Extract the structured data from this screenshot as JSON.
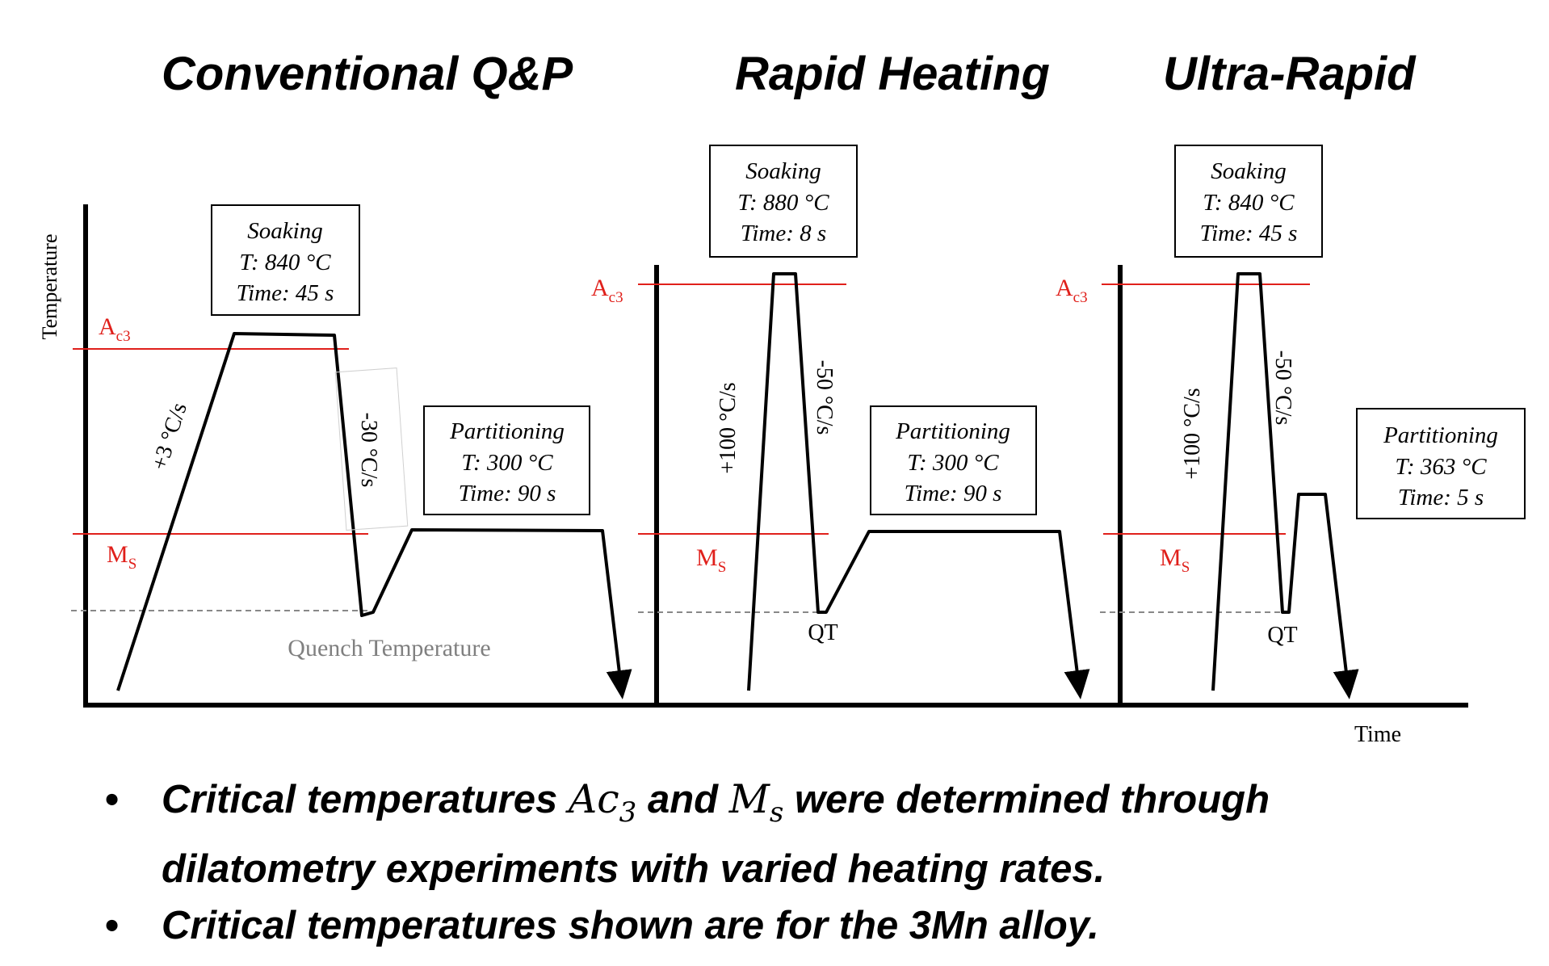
{
  "titles": {
    "conventional": "Conventional Q&P",
    "rapid": "Rapid Heating",
    "ultra": "Ultra-Rapid"
  },
  "axes": {
    "y_label": "Temperature",
    "x_label": "Time"
  },
  "temps": {
    "ac3_main": "A",
    "ac3_sub": "c3",
    "ms_main": "M",
    "ms_sub": "S"
  },
  "conventional": {
    "soaking": [
      "Soaking",
      "T: 840 °C",
      "Time: 45 s"
    ],
    "partitioning": [
      "Partitioning",
      "T: 300 °C",
      "Time: 90 s"
    ],
    "heating_rate": "+3 °C/s",
    "cooling_rate": "-30 °C/s",
    "quench_label": "Quench Temperature"
  },
  "rapid": {
    "soaking": [
      "Soaking",
      "T: 880 °C",
      "Time: 8 s"
    ],
    "partitioning": [
      "Partitioning",
      "T: 300 °C",
      "Time: 90 s"
    ],
    "heating_rate": "+100 °C/s",
    "cooling_rate": "-50 °C/s",
    "qt_label": "QT"
  },
  "ultra": {
    "soaking": [
      "Soaking",
      "T: 840 °C",
      "Time: 45 s"
    ],
    "partitioning": [
      "Partitioning",
      "T: 363 °C",
      "Time: 5 s"
    ],
    "heating_rate": "+100 °C/s",
    "cooling_rate": "-50 °C/s",
    "qt_label": "QT"
  },
  "bullets": {
    "b1_part1": "Critical temperatures",
    "b1_ac": "Ac",
    "b1_ac_sub": "3",
    "b1_and": "and",
    "b1_m": "M",
    "b1_m_sub": "s",
    "b1_part2": "were determined through",
    "b1_line2": "dilatometry experiments with varied heating rates.",
    "b2": "Critical temperatures shown are for the 3Mn alloy."
  },
  "colors": {
    "critical": "#e0201b",
    "line": "#000000",
    "quench": "#808080"
  }
}
